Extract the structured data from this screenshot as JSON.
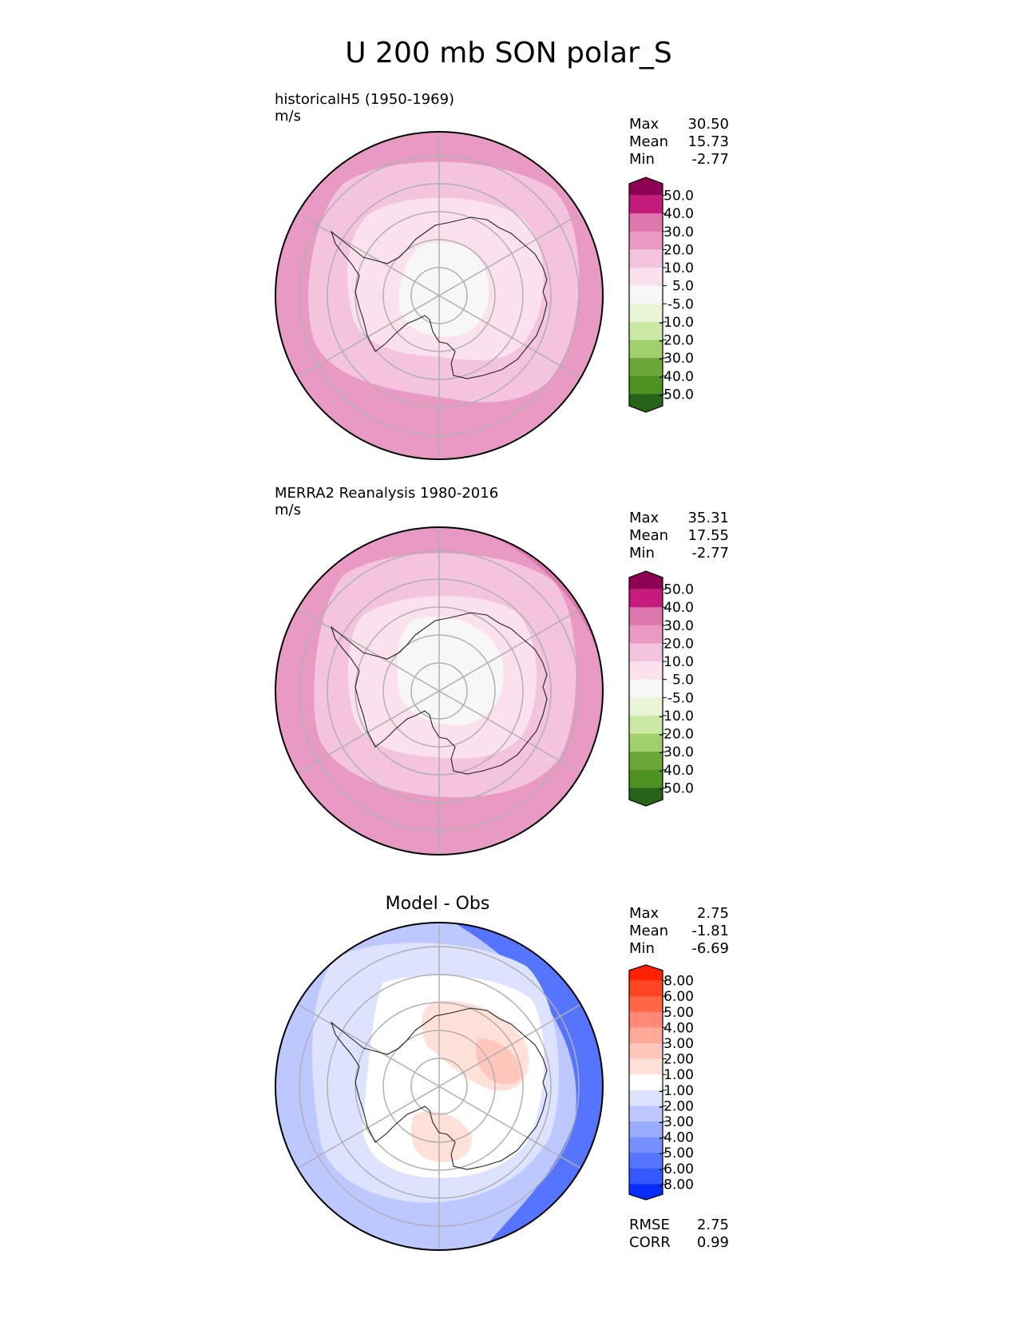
{
  "title": "U 200 mb SON polar_S",
  "stat_labels": {
    "max": "Max",
    "mean": "Mean",
    "min": "Min",
    "rmse": "RMSE",
    "corr": "CORR"
  },
  "chart_data": [
    {
      "type": "heatmap",
      "projection": "south-polar-stereographic",
      "title": "historicalH5 (1950-1969)",
      "units": "m/s",
      "stats": {
        "max": "30.50",
        "mean": "15.73",
        "min": "-2.77"
      },
      "colorbar": {
        "ticks": [
          "50.0",
          "40.0",
          "30.0",
          "20.0",
          "10.0",
          "5.0",
          "-5.0",
          "-10.0",
          "-20.0",
          "-30.0",
          "-40.0",
          "-50.0"
        ],
        "colors": [
          "#8e0152",
          "#c51b7d",
          "#de77ae",
          "#e99ac4",
          "#f4c3dd",
          "#fbe1ee",
          "#f7f7f7",
          "#eaf5d8",
          "#cbe9a4",
          "#9fd06c",
          "#6aa736",
          "#4d9221",
          "#276419"
        ]
      },
      "bands": [
        {
          "level": "20.0-30.0",
          "color": "#e99ac4"
        },
        {
          "level": "10.0-20.0",
          "color": "#f4c3dd"
        },
        {
          "level": "5.0-10.0",
          "color": "#fbe1ee"
        },
        {
          "level": "-5.0-5.0",
          "color": "#f7f7f7"
        }
      ]
    },
    {
      "type": "heatmap",
      "projection": "south-polar-stereographic",
      "title": "MERRA2 Reanalysis 1980-2016",
      "units": "m/s",
      "stats": {
        "max": "35.31",
        "mean": "17.55",
        "min": "-2.77"
      },
      "colorbar": {
        "ticks": [
          "50.0",
          "40.0",
          "30.0",
          "20.0",
          "10.0",
          "5.0",
          "-5.0",
          "-10.0",
          "-20.0",
          "-30.0",
          "-40.0",
          "-50.0"
        ],
        "colors": [
          "#8e0152",
          "#c51b7d",
          "#de77ae",
          "#e99ac4",
          "#f4c3dd",
          "#fbe1ee",
          "#f7f7f7",
          "#eaf5d8",
          "#cbe9a4",
          "#9fd06c",
          "#6aa736",
          "#4d9221",
          "#276419"
        ]
      },
      "bands": [
        {
          "level": "30.0-40.0",
          "color": "#de77ae"
        },
        {
          "level": "20.0-30.0",
          "color": "#e99ac4"
        },
        {
          "level": "10.0-20.0",
          "color": "#f4c3dd"
        },
        {
          "level": "5.0-10.0",
          "color": "#fbe1ee"
        },
        {
          "level": "-5.0-5.0",
          "color": "#f7f7f7"
        }
      ]
    },
    {
      "type": "heatmap",
      "projection": "south-polar-stereographic",
      "title": "Model - Obs",
      "units": "",
      "stats": {
        "max": "2.75",
        "mean": "-1.81",
        "min": "-6.69",
        "rmse": "2.75",
        "corr": "0.99"
      },
      "colorbar": {
        "ticks": [
          "8.00",
          "6.00",
          "5.00",
          "4.00",
          "3.00",
          "2.00",
          "1.00",
          "-1.00",
          "-2.00",
          "-3.00",
          "-4.00",
          "-5.00",
          "-6.00",
          "-8.00"
        ],
        "colors": [
          "#ff2200",
          "#ff4422",
          "#ff6644",
          "#ff8877",
          "#ffaa99",
          "#ffc6bb",
          "#ffe1da",
          "#ffffff",
          "#dde3ff",
          "#bcc8ff",
          "#9aacff",
          "#7790ff",
          "#5574ff",
          "#3358ff",
          "#0a2cff"
        ]
      },
      "bands": [
        {
          "level": "-6.00--5.00",
          "color": "#5574ff"
        },
        {
          "level": "-3.00--2.00",
          "color": "#bcc8ff"
        },
        {
          "level": "-2.00--1.00",
          "color": "#dde3ff"
        },
        {
          "level": "-1.00-1.00",
          "color": "#ffffff"
        },
        {
          "level": "1.00-2.00",
          "color": "#ffe1da"
        },
        {
          "level": "2.00-3.00",
          "color": "#ffc6bb"
        }
      ]
    }
  ]
}
